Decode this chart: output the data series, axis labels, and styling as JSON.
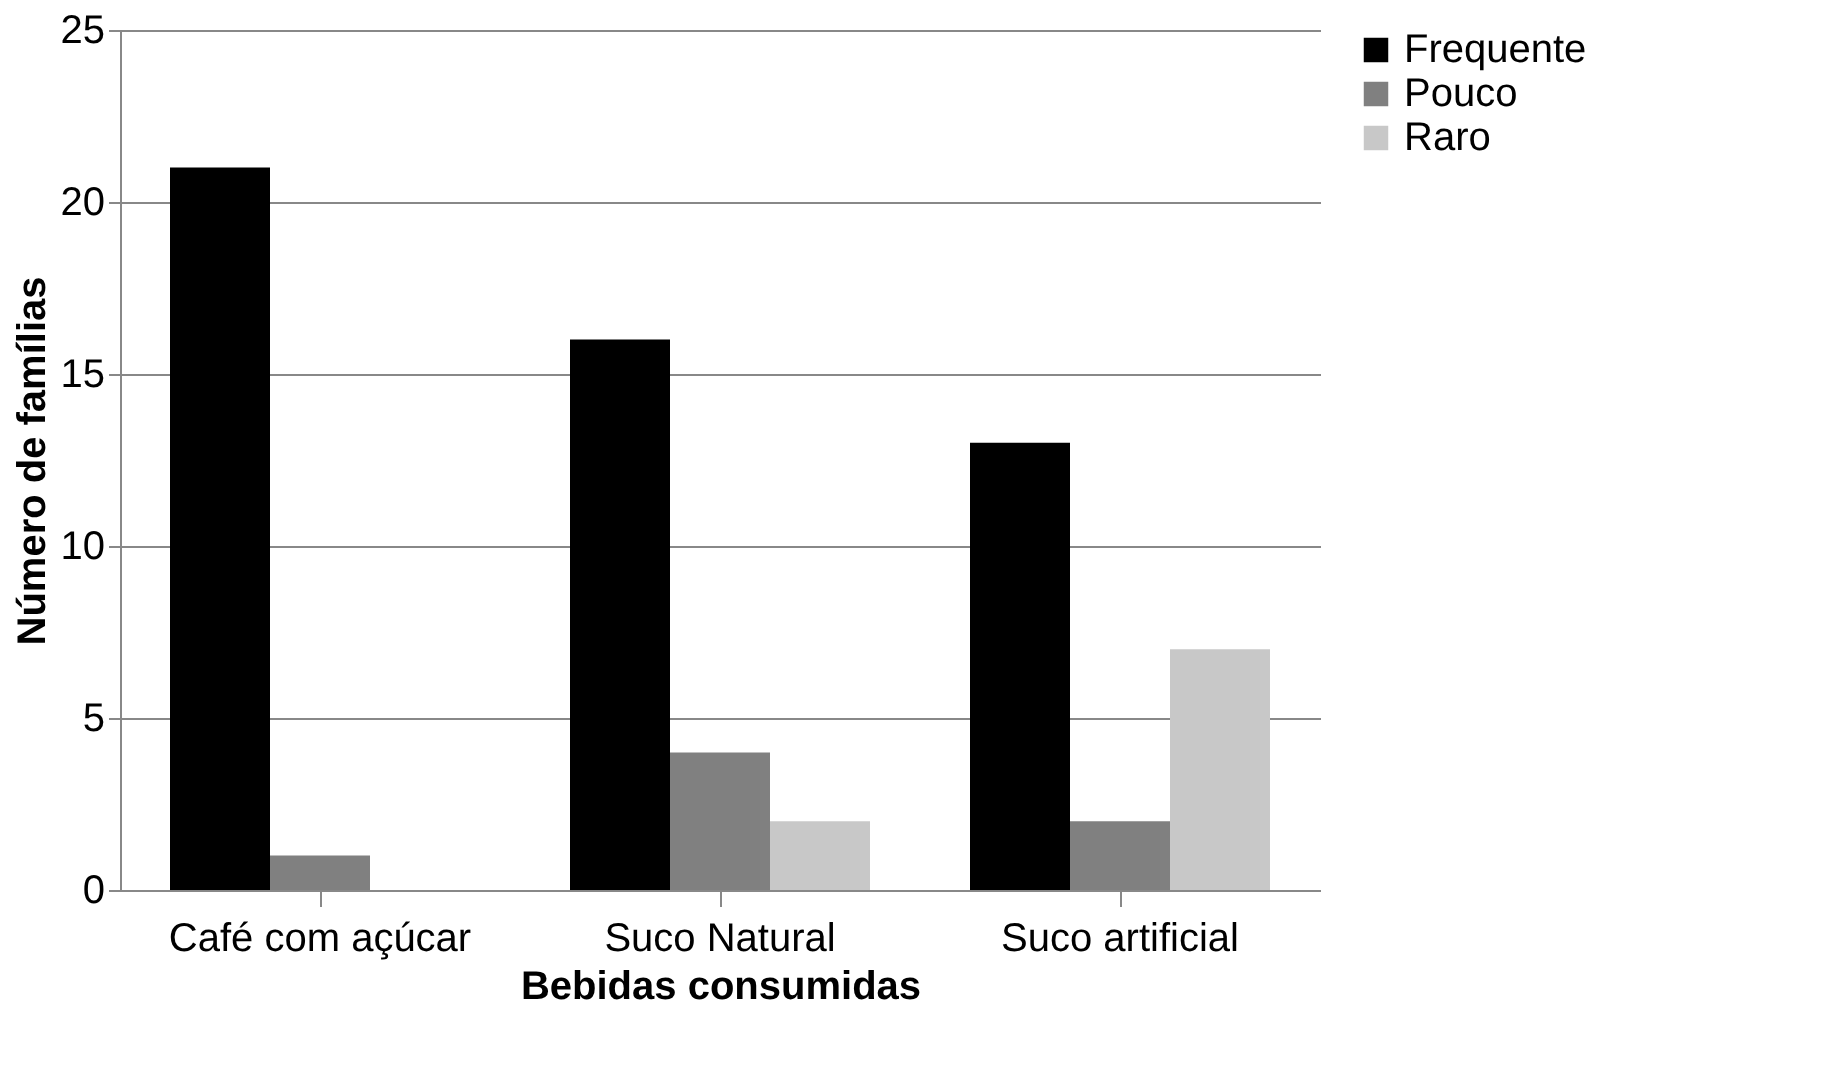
{
  "chart_data": {
    "type": "bar",
    "xlabel": "Bebidas consumidas",
    "ylabel": "Número de famílias",
    "categories": [
      "Café com açúcar",
      "Suco Natural",
      "Suco artificial"
    ],
    "series": [
      {
        "name": "Frequente",
        "color": "#000000",
        "values": [
          21,
          16,
          13
        ]
      },
      {
        "name": "Pouco",
        "color": "#808080",
        "values": [
          1,
          4,
          2
        ]
      },
      {
        "name": "Raro",
        "color": "#c8c8c8",
        "values": [
          0,
          2,
          7
        ]
      }
    ],
    "ylim": [
      0,
      25
    ],
    "yticks": [
      0,
      5,
      10,
      15,
      20,
      25
    ],
    "grid": "y",
    "legend": "right"
  }
}
